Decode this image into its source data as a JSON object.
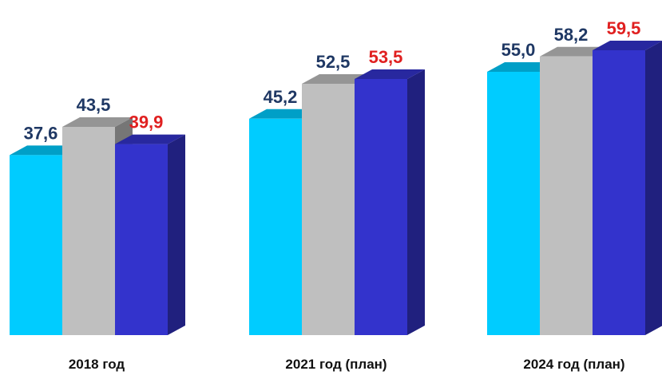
{
  "chart_data": {
    "type": "bar",
    "title": "",
    "xlabel": "",
    "ylabel": "",
    "ylim": [
      0,
      60
    ],
    "grid": false,
    "legend": "none",
    "categories": [
      "2018 год",
      "2021 год (план)",
      "2024 год (план)"
    ],
    "series": [
      {
        "values": [
          37.6,
          45.2,
          55.0
        ],
        "labels": [
          "37,6",
          "45,2",
          "55,0"
        ],
        "color": "#00CCFF",
        "label_color": "#1F3864"
      },
      {
        "values": [
          43.5,
          52.5,
          58.2
        ],
        "labels": [
          "43,5",
          "52,5",
          "58,2"
        ],
        "color": "#BFBFBF",
        "label_color": "#1F3864"
      },
      {
        "values": [
          39.9,
          53.5,
          59.5
        ],
        "labels": [
          "39,9",
          "53,5",
          "59,5"
        ],
        "color": "#3333CC",
        "label_color": "#E02020"
      }
    ]
  }
}
